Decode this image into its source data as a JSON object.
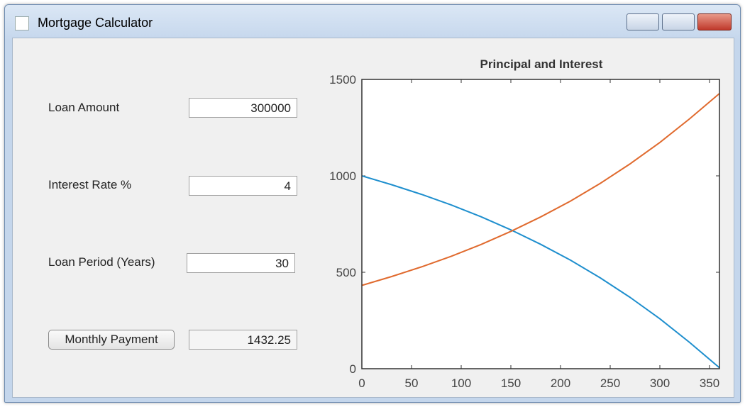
{
  "window": {
    "title": "Mortgage Calculator"
  },
  "form": {
    "fields": [
      {
        "label": "Loan Amount",
        "value": "300000"
      },
      {
        "label": "Interest Rate %",
        "value": "4"
      },
      {
        "label": "Loan Period (Years)",
        "value": "30"
      }
    ],
    "button": "Monthly Payment",
    "result": "1432.25"
  },
  "chart_data": {
    "type": "line",
    "title": "Principal and Interest",
    "x": [
      0,
      30,
      60,
      90,
      120,
      150,
      180,
      210,
      240,
      270,
      300,
      330,
      360
    ],
    "series": [
      {
        "color": "#1f8fce",
        "values": [
          1000,
          954,
          904,
          849,
          788,
          720,
          645,
          563,
          471,
          370,
          259,
          136,
          5
        ]
      },
      {
        "color": "#e06a2e",
        "values": [
          432,
          478,
          528,
          583,
          644,
          712,
          787,
          869,
          961,
          1062,
          1173,
          1296,
          1427
        ]
      }
    ],
    "xlim": [
      0,
      360
    ],
    "xticks": [
      0,
      50,
      100,
      150,
      200,
      250,
      300,
      350
    ],
    "ylim": [
      0,
      1500
    ],
    "yticks": [
      0,
      500,
      1000,
      1500
    ],
    "grid": false
  }
}
